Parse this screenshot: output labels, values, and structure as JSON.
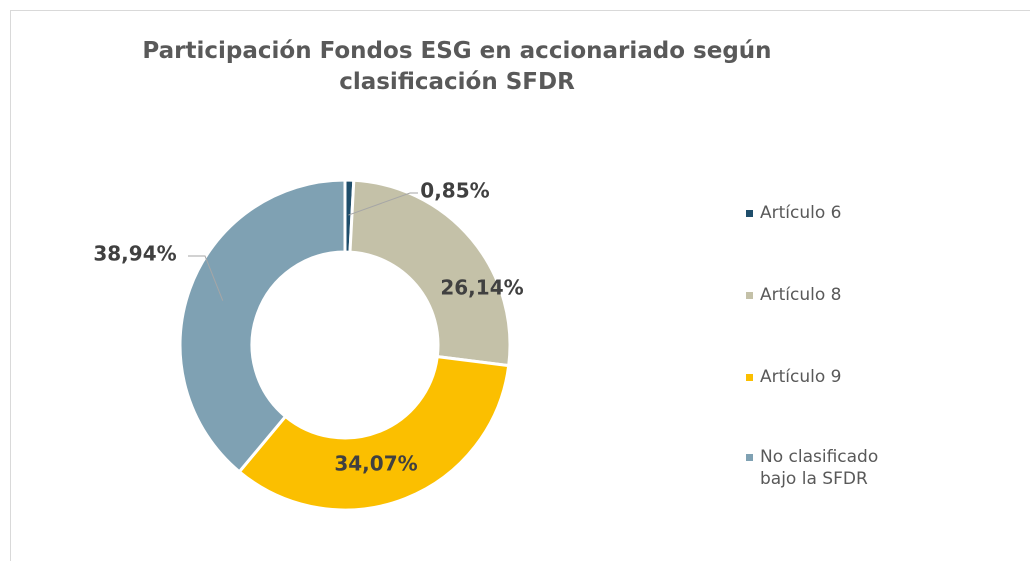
{
  "chart_data": {
    "type": "donut",
    "title": "Participación Fondos ESG en accionariado según clasificación SFDR",
    "categories": [
      "Artículo 6",
      "Artículo 8",
      "Artículo 9",
      "No clasificado bajo la SFDR"
    ],
    "values": [
      0.85,
      26.14,
      34.07,
      38.94
    ],
    "value_labels": [
      "0,85%",
      "26,14%",
      "34,07%",
      "38,94%"
    ],
    "colors": [
      "#1f4e6b",
      "#c4c1a8",
      "#fbbf00",
      "#7fa1b3"
    ],
    "legend": "right"
  }
}
